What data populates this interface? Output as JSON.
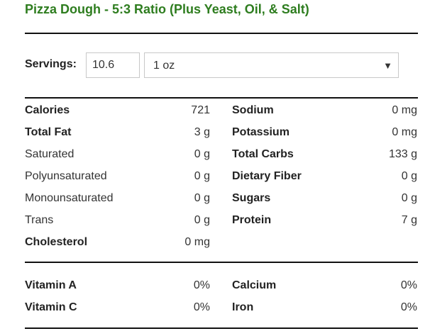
{
  "title": "Pizza Dough - 5:3 Ratio (Plus Yeast, Oil, & Salt)",
  "servings": {
    "label": "Servings:",
    "value": "10.6"
  },
  "unit": {
    "selected": "1 oz",
    "caret": "▼"
  },
  "nutrients_left": [
    {
      "label": "Calories",
      "value": "721",
      "bold": true
    },
    {
      "label": "Total Fat",
      "value": "3 g",
      "bold": true
    },
    {
      "label": "Saturated",
      "value": "0 g",
      "bold": false
    },
    {
      "label": "Polyunsaturated",
      "value": "0 g",
      "bold": false
    },
    {
      "label": "Monounsaturated",
      "value": "0 g",
      "bold": false
    },
    {
      "label": "Trans",
      "value": "0 g",
      "bold": false
    },
    {
      "label": "Cholesterol",
      "value": "0 mg",
      "bold": true
    }
  ],
  "nutrients_right": [
    {
      "label": "Sodium",
      "value": "0 mg",
      "bold": true
    },
    {
      "label": "Potassium",
      "value": "0 mg",
      "bold": true
    },
    {
      "label": "Total Carbs",
      "value": "133 g",
      "bold": true
    },
    {
      "label": "Dietary Fiber",
      "value": "0 g",
      "bold": true
    },
    {
      "label": "Sugars",
      "value": "0 g",
      "bold": true
    },
    {
      "label": "Protein",
      "value": "7 g",
      "bold": true
    }
  ],
  "vitamins_left": [
    {
      "label": "Vitamin A",
      "value": "0%"
    },
    {
      "label": "Vitamin C",
      "value": "0%"
    }
  ],
  "vitamins_right": [
    {
      "label": "Calcium",
      "value": "0%"
    },
    {
      "label": "Iron",
      "value": "0%"
    }
  ]
}
